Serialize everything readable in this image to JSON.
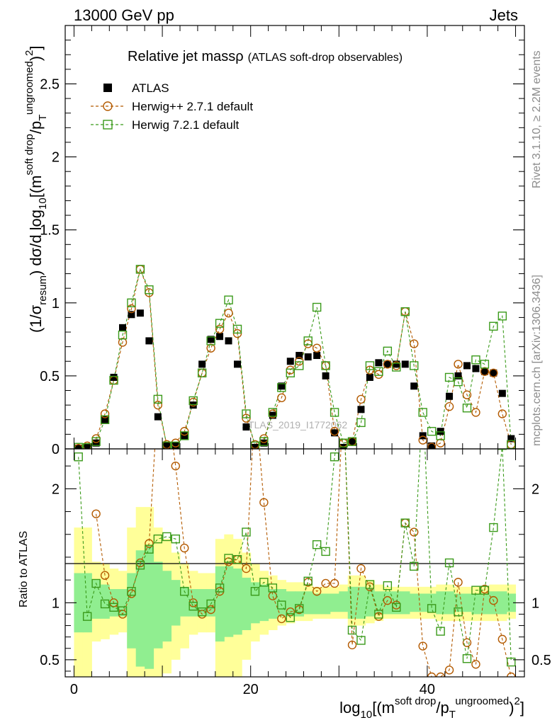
{
  "header": {
    "energy_label": "13000 GeV pp",
    "category_label": "Jets",
    "rivet_label": "Rivet 3.1.10, ≥ 2.2M events",
    "mcplots_label": "mcplots.cern.ch [arXiv:1306.3436]",
    "watermark": "ATLAS_2019_I1772062"
  },
  "colors": {
    "atlas": "#000000",
    "herwigpp": "#b35a00",
    "herwig7": "#3a9a1a",
    "band_inner": "#90ee90",
    "band_outer": "#ffff99"
  },
  "chart_data": [
    {
      "type": "scatter",
      "title": "Relative jet massρ",
      "subtitle": "(ATLAS soft-drop observables)",
      "ylabel_parts": {
        "a": "(1/σ",
        "sub1": "resum",
        "b": ") dσ/d log",
        "sub2": "10",
        "c": "[(m",
        "sup1": "soft drop",
        "d": "/p",
        "sub3": "T",
        "sup2": "ungroomed",
        "e": ")",
        "sup3": "2",
        "f": "]"
      },
      "xlim": [
        -1,
        51
      ],
      "ylim": [
        0,
        2.9
      ],
      "yticks": [
        0,
        0.5,
        1,
        1.5,
        2,
        2.5
      ],
      "ytick_labels": [
        "0",
        "0.5",
        "1",
        "1.5",
        "2",
        "2.5"
      ],
      "legend": {
        "position": "top-left",
        "entries": [
          "ATLAS",
          "Herwig++ 2.7.1 default",
          "Herwig 7.2.1 default"
        ]
      },
      "x": [
        0.5,
        1.5,
        2.5,
        3.5,
        4.5,
        5.5,
        6.5,
        7.5,
        8.5,
        9.5,
        10.5,
        11.5,
        12.5,
        13.5,
        14.5,
        15.5,
        16.5,
        17.5,
        18.5,
        19.5,
        20.5,
        21.5,
        22.5,
        23.5,
        24.5,
        25.5,
        26.5,
        27.5,
        28.5,
        29.5,
        30.5,
        31.5,
        32.5,
        33.5,
        34.5,
        35.5,
        36.5,
        37.5,
        38.5,
        39.5,
        40.5,
        41.5,
        42.5,
        43.5,
        44.5,
        45.5,
        46.5,
        47.5,
        48.5,
        49.5
      ],
      "series": [
        {
          "name": "ATLAS",
          "values": [
            0.005,
            0.01,
            0.04,
            0.2,
            0.49,
            0.83,
            0.92,
            0.93,
            0.74,
            0.22,
            0.02,
            0.02,
            0.09,
            0.3,
            0.58,
            0.75,
            0.77,
            0.74,
            0.58,
            0.15,
            0.01,
            0.04,
            0.23,
            0.43,
            0.6,
            0.64,
            0.63,
            0.64,
            0.5,
            0.11,
            0.01,
            0.05,
            0.27,
            0.49,
            0.59,
            0.58,
            0.58,
            0.58,
            0.43,
            0.09,
            0.02,
            0.12,
            0.36,
            0.5,
            0.57,
            0.55,
            0.53,
            0.52,
            0.38,
            0.07
          ]
        },
        {
          "name": "Herwig++ 2.7.1 default",
          "values": [
            0.004,
            0.02,
            0.07,
            0.24,
            0.47,
            0.73,
            0.96,
            1.23,
            1.07,
            0.3,
            0.03,
            0.04,
            0.12,
            0.32,
            0.52,
            0.69,
            0.82,
            0.93,
            0.79,
            0.21,
            0.03,
            0.07,
            0.24,
            0.35,
            0.54,
            0.6,
            0.72,
            0.69,
            0.57,
            0.12,
            0.04,
            0.05,
            0.34,
            0.54,
            0.51,
            0.58,
            0.57,
            0.94,
            0.72,
            0.06,
            0.012,
            0.04,
            0.29,
            0.58,
            0.37,
            0.25,
            0.53,
            0.52,
            0.24,
            0.03
          ]
        },
        {
          "name": "Herwig 7.2.1 default",
          "values": [
            0.011,
            0.009,
            0.05,
            0.2,
            0.47,
            0.78,
            1.0,
            1.23,
            1.09,
            0.34,
            0.02,
            0.02,
            0.09,
            0.33,
            0.52,
            0.74,
            0.86,
            1.02,
            0.82,
            0.24,
            0.02,
            0.05,
            0.25,
            0.42,
            0.52,
            0.57,
            0.74,
            0.97,
            0.57,
            0.25,
            0.04,
            0.05,
            0.18,
            0.57,
            0.53,
            0.67,
            0.56,
            0.94,
            0.57,
            0.25,
            0.12,
            0.09,
            0.49,
            0.46,
            0.28,
            0.61,
            0.58,
            0.84,
            0.91,
            0.03
          ]
        }
      ]
    },
    {
      "type": "line",
      "ylabel": "Ratio to ATLAS",
      "xlabel_parts": {
        "a": "log",
        "sub1": "10",
        "b": "[(m",
        "sup1": "soft drop",
        "c": "/p",
        "sub2": "T",
        "sup2": "ungroomed",
        "d": ")",
        "sup3": "2",
        "e": "]"
      },
      "xlim": [
        -1,
        51
      ],
      "ylim": [
        0.35,
        2.35
      ],
      "xticks": [
        0,
        20,
        40
      ],
      "xtick_labels": [
        "0",
        "20",
        "40"
      ],
      "yticks": [
        0.5,
        1,
        2
      ],
      "ytick_labels": [
        "0.5",
        "1",
        "2"
      ],
      "x": [
        0.5,
        1.5,
        2.5,
        3.5,
        4.5,
        5.5,
        6.5,
        7.5,
        8.5,
        9.5,
        10.5,
        11.5,
        12.5,
        13.5,
        14.5,
        15.5,
        16.5,
        17.5,
        18.5,
        19.5,
        20.5,
        21.5,
        22.5,
        23.5,
        24.5,
        25.5,
        26.5,
        27.5,
        28.5,
        29.5,
        30.5,
        31.5,
        32.5,
        33.5,
        34.5,
        35.5,
        36.5,
        37.5,
        38.5,
        39.5,
        40.5,
        41.5,
        42.5,
        43.5,
        44.5,
        45.5,
        46.5,
        47.5,
        48.5,
        49.5
      ],
      "band_inner_lo": [
        0.74,
        0.74,
        0.86,
        0.86,
        0.88,
        0.88,
        0.6,
        0.44,
        0.42,
        0.6,
        0.66,
        0.8,
        0.88,
        0.88,
        0.88,
        0.88,
        0.66,
        0.7,
        0.72,
        0.76,
        0.82,
        0.84,
        0.86,
        0.88,
        0.88,
        0.88,
        0.9,
        0.9,
        0.9,
        0.92,
        0.92,
        0.86,
        0.86,
        0.88,
        0.9,
        0.9,
        0.9,
        0.9,
        0.92,
        0.92,
        0.92,
        0.9,
        0.9,
        0.92,
        0.92,
        0.9,
        0.9,
        0.9,
        0.9,
        0.92
      ],
      "band_inner_hi": [
        1.26,
        1.26,
        1.2,
        1.16,
        1.12,
        1.12,
        1.26,
        1.46,
        1.5,
        1.36,
        1.28,
        1.2,
        1.14,
        1.12,
        1.12,
        1.12,
        1.32,
        1.32,
        1.3,
        1.22,
        1.18,
        1.16,
        1.12,
        1.12,
        1.1,
        1.1,
        1.1,
        1.08,
        1.08,
        1.08,
        1.1,
        1.14,
        1.14,
        1.12,
        1.1,
        1.1,
        1.1,
        1.1,
        1.08,
        1.08,
        1.08,
        1.1,
        1.1,
        1.08,
        1.08,
        1.08,
        1.08,
        1.1,
        1.1,
        1.08
      ],
      "band_outer_lo": [
        0.3,
        0.3,
        0.66,
        0.68,
        0.72,
        0.74,
        0.3,
        0.3,
        0.3,
        0.3,
        0.38,
        0.5,
        0.6,
        0.72,
        0.74,
        0.74,
        0.3,
        0.3,
        0.3,
        0.5,
        0.66,
        0.72,
        0.76,
        0.8,
        0.82,
        0.84,
        0.84,
        0.86,
        0.86,
        0.86,
        0.86,
        0.8,
        0.8,
        0.82,
        0.84,
        0.86,
        0.86,
        0.86,
        0.86,
        0.86,
        0.86,
        0.84,
        0.84,
        0.84,
        0.84,
        0.84,
        0.84,
        0.84,
        0.84,
        0.86
      ],
      "band_outer_hi": [
        1.66,
        1.66,
        1.36,
        1.34,
        1.3,
        1.28,
        1.66,
        1.84,
        1.84,
        1.66,
        1.56,
        1.44,
        1.34,
        1.28,
        1.26,
        1.26,
        1.56,
        1.6,
        1.56,
        1.44,
        1.34,
        1.28,
        1.24,
        1.2,
        1.18,
        1.18,
        1.16,
        1.14,
        1.14,
        1.14,
        1.16,
        1.24,
        1.24,
        1.2,
        1.16,
        1.14,
        1.14,
        1.14,
        1.14,
        1.14,
        1.14,
        1.16,
        1.16,
        1.14,
        1.14,
        1.14,
        1.14,
        1.16,
        1.16,
        1.16
      ],
      "series": [
        {
          "name": "Herwig++ 2.7.1 default",
          "values": [
            null,
            null,
            1.78,
            1.24,
            1.0,
            0.9,
            1.08,
            1.35,
            1.52,
            2.8,
            2.8,
            2.2,
            1.48,
            1.0,
            0.9,
            0.94,
            1.1,
            1.36,
            1.38,
            1.3,
            2.8,
            1.88,
            1.06,
            0.86,
            0.92,
            0.94,
            1.18,
            1.1,
            1.17,
            1.17,
            2.8,
            0.63,
            1.3,
            1.14,
            0.88,
            1.02,
            0.98,
            1.7,
            1.62,
            0.62,
            0.35,
            0.35,
            0.41,
            1.18,
            0.65,
            0.46,
            1.12,
            1.02,
            0.68,
            0.35
          ]
        },
        {
          "name": "Herwig 7.2.1 default",
          "values": [
            2.28,
            0.88,
            1.17,
            0.99,
            0.96,
            0.93,
            1.1,
            1.33,
            1.47,
            1.56,
            1.58,
            1.56,
            1.1,
            0.97,
            0.92,
            0.99,
            1.13,
            1.39,
            1.38,
            1.62,
            1.1,
            1.18,
            1.13,
            0.98,
            0.87,
            0.95,
            1.19,
            1.51,
            1.45,
            2.28,
            2.8,
            0.76,
            0.67,
            1.16,
            0.9,
            1.15,
            0.96,
            1.7,
            1.32,
            2.8,
            0.95,
            0.75,
            1.35,
            0.92,
            0.51,
            1.11,
            1.11,
            1.66,
            2.38,
            0.48
          ]
        }
      ]
    }
  ]
}
